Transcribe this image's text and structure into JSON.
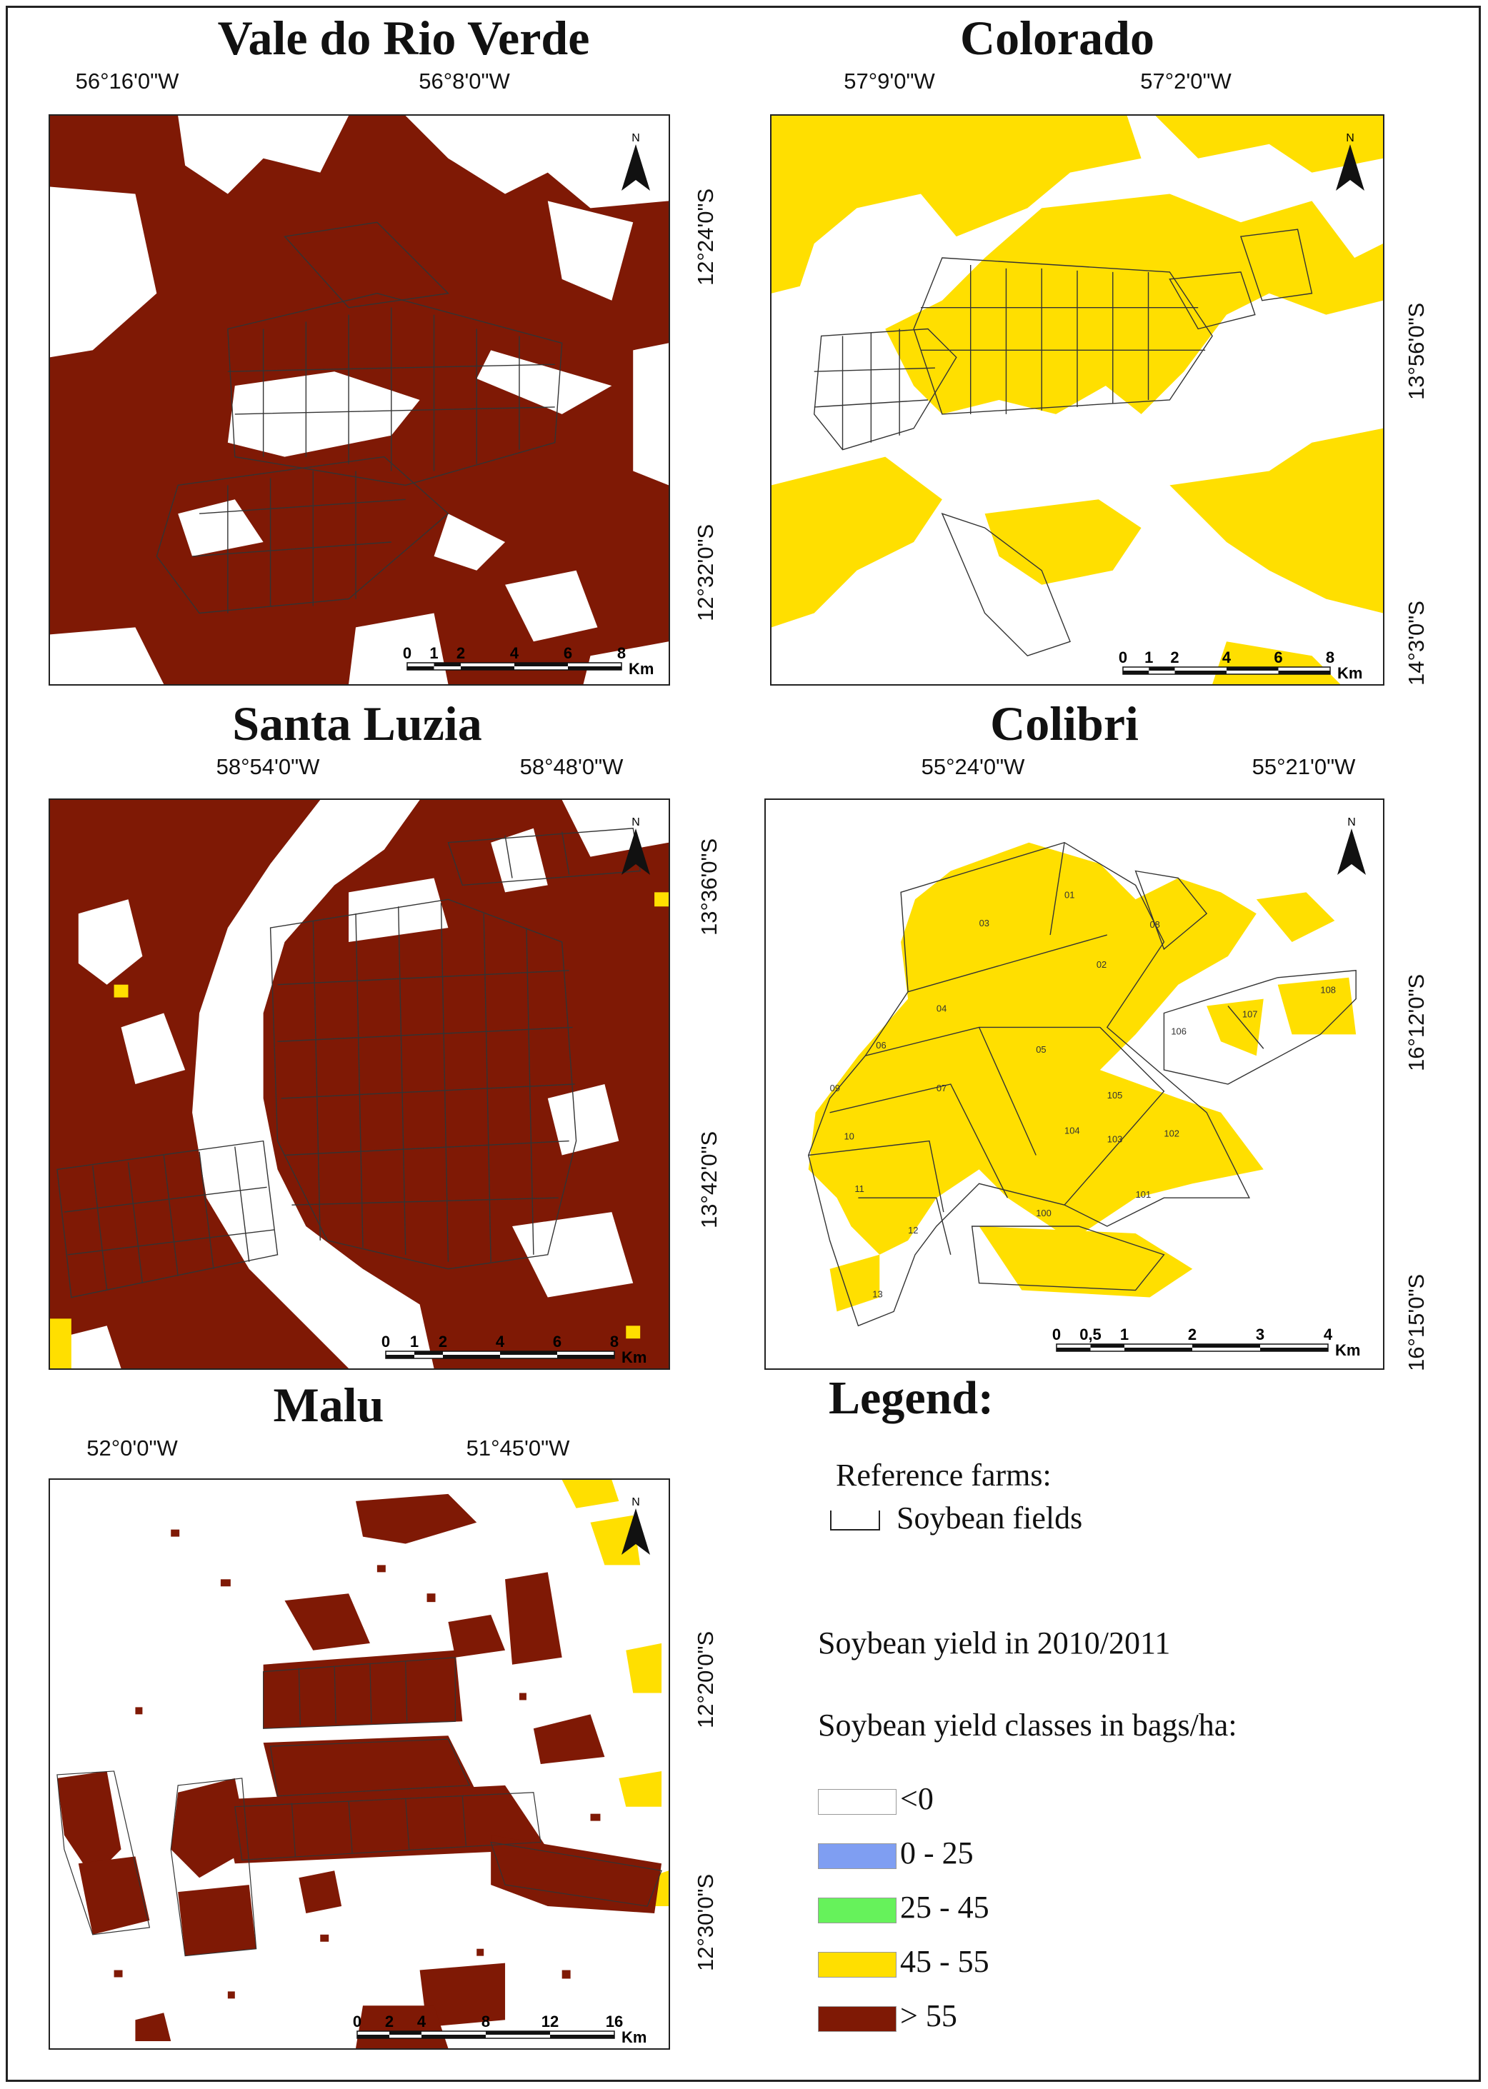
{
  "colors": {
    "class_lt0": "#ffffff",
    "class_0_25": "#7f9ef2",
    "class_25_45": "#66f25b",
    "class_45_55": "#ffdf00",
    "class_gt55": "#7f1905",
    "field_outline": "#333333"
  },
  "maps": [
    {
      "id": "vale",
      "title": "Vale do Rio Verde",
      "dominant_class": "> 55",
      "lon_labels": [
        "56°16'0\"W",
        "56°8'0\"W"
      ],
      "lat_labels": [
        "12°24'0\"S",
        "12°32'0\"S"
      ],
      "north": "N",
      "scale_labels": [
        "0",
        "1",
        "2",
        "4",
        "6",
        "8"
      ],
      "scale_unit": "Km"
    },
    {
      "id": "colorado",
      "title": "Colorado",
      "dominant_class": "45 - 55",
      "lon_labels": [
        "57°9'0\"W",
        "57°2'0\"W"
      ],
      "lat_labels": [
        "13°56'0\"S",
        "14°3'0\"S"
      ],
      "north": "N",
      "scale_labels": [
        "0",
        "1",
        "2",
        "4",
        "6",
        "8"
      ],
      "scale_unit": "Km"
    },
    {
      "id": "santa",
      "title": "Santa Luzia",
      "dominant_class": "> 55",
      "lon_labels": [
        "58°54'0\"W",
        "58°48'0\"W"
      ],
      "lat_labels": [
        "13°36'0\"S",
        "13°42'0\"S"
      ],
      "north": "N",
      "scale_labels": [
        "0",
        "1",
        "2",
        "4",
        "6",
        "8"
      ],
      "scale_unit": "Km"
    },
    {
      "id": "colibri",
      "title": "Colibri",
      "dominant_class": "45 - 55",
      "lon_labels": [
        "55°24'0\"W",
        "55°21'0\"W"
      ],
      "lat_labels": [
        "16°12'0\"S",
        "16°15'0\"S"
      ],
      "north": "N",
      "scale_labels": [
        "0",
        "0,5",
        "1",
        "2",
        "3",
        "4"
      ],
      "scale_unit": "Km"
    },
    {
      "id": "malu",
      "title": "Malu",
      "dominant_class": "> 55",
      "lon_labels": [
        "52°0'0\"W",
        "51°45'0\"W"
      ],
      "lat_labels": [
        "12°20'0\"S",
        "12°30'0\"S"
      ],
      "north": "N",
      "scale_labels": [
        "0",
        "2",
        "4",
        "8",
        "12",
        "16"
      ],
      "scale_unit": "Km"
    }
  ],
  "legend": {
    "title": "Legend:",
    "reference_heading": "Reference farms:",
    "field_label": "Soybean fields",
    "yield_year": "Soybean yield in 2010/2011",
    "classes_heading": "Soybean yield classes in bags/ha:",
    "classes": [
      {
        "label": "<0",
        "color": "#ffffff"
      },
      {
        "label": "0 - 25",
        "color": "#7f9ef2"
      },
      {
        "label": "25 - 45",
        "color": "#66f25b"
      },
      {
        "label": "45 - 55",
        "color": "#ffdf00"
      },
      {
        "label": "> 55",
        "color": "#7f1905"
      }
    ]
  }
}
